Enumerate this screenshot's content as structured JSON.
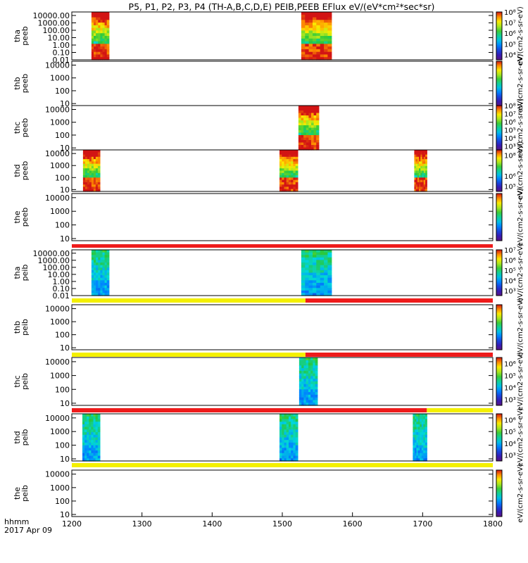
{
  "chart_data": {
    "type": "heatmap",
    "title": "P5, P1, P2, P3, P4 (TH-A,B,C,D,E) PEIB,PEEB EFlux eV/(eV*cm²*sec*sr)",
    "x_axis": {
      "range": [
        1200,
        1800
      ],
      "tick_labels": [
        "1200",
        "1300",
        "1400",
        "1500",
        "1600",
        "1700",
        "1800"
      ],
      "corner_label": "hhmm",
      "date_label": "2017 Apr 09"
    },
    "colorbar_colormap": "rainbow (purple-blue-cyan-green-yellow-red)",
    "panels": [
      {
        "ylabel": [
          "tha",
          "peeb"
        ],
        "yrange": [
          0.01,
          30000
        ],
        "ylog": true,
        "ytick_labels": [
          "10000.00",
          "1000.00",
          "100.00",
          "10.00",
          "1.00",
          "0.10",
          "0.01"
        ],
        "colorbar": {
          "label": "eV/(cm2-s-sr-eV)",
          "tick_labels": [
            "10⁸",
            "10⁷",
            "10⁶",
            "10⁵",
            "10⁴"
          ],
          "exp_range": [
            3.5,
            8
          ]
        },
        "data_intervals": [
          [
            1228,
            1253
          ],
          [
            1527,
            1570
          ]
        ]
      },
      {
        "ylabel": [
          "thb",
          "peeb"
        ],
        "yrange": [
          7,
          20000
        ],
        "ylog": true,
        "ytick_labels": [
          "10000",
          "1000",
          "100",
          "10"
        ],
        "colorbar": {
          "label": "eV/(cm2-s-sr-eV)",
          "tick_labels": [],
          "exp_range": [
            4,
            8
          ]
        },
        "data_intervals": []
      },
      {
        "ylabel": [
          "thc",
          "peeb"
        ],
        "yrange": [
          7,
          20000
        ],
        "ylog": true,
        "ytick_labels": [
          "10000",
          "1000",
          "100",
          "10"
        ],
        "colorbar": {
          "label": "eV/(cm2-s-sr-eV)",
          "tick_labels": [
            "10⁸",
            "10⁷",
            "10⁶",
            "10⁵",
            "10⁴",
            "10³"
          ],
          "exp_range": [
            2.5,
            8
          ]
        },
        "data_intervals": [
          [
            1523,
            1552
          ]
        ]
      },
      {
        "ylabel": [
          "thd",
          "peeb"
        ],
        "yrange": [
          7,
          20000
        ],
        "ylog": true,
        "ytick_labels": [
          "10000",
          "1000",
          "100",
          "10"
        ],
        "colorbar": {
          "label": "eV/(cm2-s-sr-eV)",
          "tick_labels": [
            "10⁸",
            "10⁶",
            "10⁵"
          ],
          "exp_range": [
            4.5,
            8.5
          ]
        },
        "data_intervals": [
          [
            1216,
            1240
          ],
          [
            1496,
            1522
          ],
          [
            1688,
            1706
          ]
        ]
      },
      {
        "ylabel": [
          "the",
          "peeb"
        ],
        "yrange": [
          7,
          20000
        ],
        "ylog": true,
        "ytick_labels": [
          "10000",
          "1000",
          "100",
          "10"
        ],
        "colorbar": {
          "label": "eV/(cm2-s-sr-eV)",
          "tick_labels": [],
          "exp_range": [
            4,
            8
          ]
        },
        "data_intervals": []
      },
      {
        "ylabel": [
          "tha",
          "peib"
        ],
        "yrange": [
          0.01,
          30000
        ],
        "ylog": true,
        "ytick_labels": [
          "10000.00",
          "1000.00",
          "100.00",
          "10.00",
          "1.00",
          "0.10",
          "0.01"
        ],
        "colorbar": {
          "label": "eV/(cm2-s-sr-eV)",
          "tick_labels": [
            "10⁷",
            "10⁶",
            "10⁵",
            "10⁴",
            "10³"
          ],
          "exp_range": [
            2.5,
            7
          ]
        },
        "data_intervals": [
          [
            1228,
            1253
          ],
          [
            1527,
            1570
          ]
        ]
      },
      {
        "ylabel": [
          "thb",
          "peib"
        ],
        "yrange": [
          7,
          20000
        ],
        "ylog": true,
        "ytick_labels": [
          "10000",
          "1000",
          "100",
          "10"
        ],
        "colorbar": {
          "label": "eV/(cm2-s-sr-eV)",
          "tick_labels": [],
          "exp_range": [
            3,
            7
          ]
        },
        "data_intervals": []
      },
      {
        "ylabel": [
          "thc",
          "peib"
        ],
        "yrange": [
          7,
          20000
        ],
        "ylog": true,
        "ytick_labels": [
          "10000",
          "1000",
          "100",
          "10"
        ],
        "colorbar": {
          "label": "eV/(cm2-s-sr-eV)",
          "tick_labels": [
            "10⁶",
            "10⁵",
            "10⁴",
            "10³"
          ],
          "exp_range": [
            2.5,
            6.5
          ]
        },
        "data_intervals": [
          [
            1524,
            1550
          ]
        ]
      },
      {
        "ylabel": [
          "thd",
          "peib"
        ],
        "yrange": [
          7,
          20000
        ],
        "ylog": true,
        "ytick_labels": [
          "10000",
          "1000",
          "100",
          "10"
        ],
        "colorbar": {
          "label": "eV/(cm2-s-sr-eV)",
          "tick_labels": [
            "10⁶",
            "10⁵",
            "10⁴",
            "10³"
          ],
          "exp_range": [
            2.5,
            6.5
          ]
        },
        "data_intervals": [
          [
            1215,
            1240
          ],
          [
            1496,
            1522
          ],
          [
            1686,
            1706
          ]
        ]
      },
      {
        "ylabel": [
          "the",
          "peib"
        ],
        "yrange": [
          7,
          20000
        ],
        "ylog": true,
        "ytick_labels": [
          "10000",
          "1000",
          "100",
          "10"
        ],
        "colorbar": {
          "label": "eV/(cm2-s-sr-eV)",
          "tick_labels": [],
          "exp_range": [
            3,
            7
          ]
        },
        "data_intervals": []
      }
    ],
    "mode_bars": [
      {
        "position": "below the peeb panels",
        "segments": [
          {
            "x": [
              1200,
              1800
            ],
            "color": "#ee1b1b"
          }
        ]
      },
      {
        "position": "below tha peib",
        "segments": [
          {
            "x": [
              1200,
              1533
            ],
            "color": "#f4f000"
          },
          {
            "x": [
              1533,
              1800
            ],
            "color": "#ee1b1b"
          }
        ]
      },
      {
        "position": "below thb peib",
        "segments": [
          {
            "x": [
              1200,
              1533
            ],
            "color": "#f4f000"
          },
          {
            "x": [
              1533,
              1800
            ],
            "color": "#ee1b1b"
          }
        ]
      },
      {
        "position": "below thc peib",
        "segments": [
          {
            "x": [
              1200,
              1706
            ],
            "color": "#ee1b1b"
          },
          {
            "x": [
              1706,
              1800
            ],
            "color": "#f4f000"
          }
        ]
      },
      {
        "position": "below thd peib",
        "segments": [
          {
            "x": [
              1200,
              1800
            ],
            "color": "#f4f000"
          }
        ]
      }
    ]
  }
}
